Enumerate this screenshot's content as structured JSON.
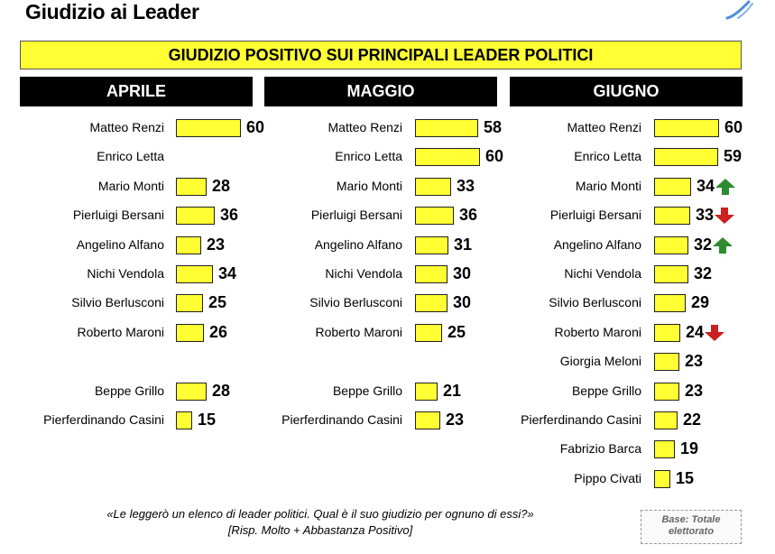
{
  "page": {
    "title": "Giudizio ai Leader"
  },
  "chart_data": {
    "type": "bar",
    "title": "GIUDIZIO POSITIVO SUI PRINCIPALI LEADER POLITICI",
    "panels": [
      {
        "name": "APRILE",
        "rows": [
          {
            "label": "Matteo Renzi",
            "value": 60
          },
          {
            "label": "Enrico Letta",
            "value": null
          },
          {
            "label": "Mario Monti",
            "value": 28
          },
          {
            "label": "Pierluigi Bersani",
            "value": 36
          },
          {
            "label": "Angelino Alfano",
            "value": 23
          },
          {
            "label": "Nichi Vendola",
            "value": 34
          },
          {
            "label": "Silvio Berlusconi",
            "value": 25
          },
          {
            "label": "Roberto Maroni",
            "value": 26
          },
          {
            "label": "",
            "value": null
          },
          {
            "label": "Beppe Grillo",
            "value": 28
          },
          {
            "label": "Pierferdinando Casini",
            "value": 15
          }
        ]
      },
      {
        "name": "MAGGIO",
        "rows": [
          {
            "label": "Matteo Renzi",
            "value": 58
          },
          {
            "label": "Enrico Letta",
            "value": 60
          },
          {
            "label": "Mario Monti",
            "value": 33
          },
          {
            "label": "Pierluigi Bersani",
            "value": 36
          },
          {
            "label": "Angelino Alfano",
            "value": 31
          },
          {
            "label": "Nichi Vendola",
            "value": 30
          },
          {
            "label": "Silvio Berlusconi",
            "value": 30
          },
          {
            "label": "Roberto Maroni",
            "value": 25
          },
          {
            "label": "",
            "value": null
          },
          {
            "label": "Beppe Grillo",
            "value": 21
          },
          {
            "label": "Pierferdinando Casini",
            "value": 23
          }
        ]
      },
      {
        "name": "GIUGNO",
        "rows": [
          {
            "label": "Matteo Renzi",
            "value": 60
          },
          {
            "label": "Enrico Letta",
            "value": 59
          },
          {
            "label": "Mario Monti",
            "value": 34,
            "trend": "up"
          },
          {
            "label": "Pierluigi Bersani",
            "value": 33,
            "trend": "down"
          },
          {
            "label": "Angelino Alfano",
            "value": 32,
            "trend": "up"
          },
          {
            "label": "Nichi Vendola",
            "value": 32
          },
          {
            "label": "Silvio Berlusconi",
            "value": 29
          },
          {
            "label": "Roberto Maroni",
            "value": 24,
            "trend": "down"
          },
          {
            "label": "Giorgia Meloni",
            "value": 23
          },
          {
            "label": "Beppe Grillo",
            "value": 23
          },
          {
            "label": "Pierferdinando Casini",
            "value": 22
          },
          {
            "label": "Fabrizio Barca",
            "value": 19
          },
          {
            "label": "Pippo Civati",
            "value": 15
          }
        ]
      }
    ]
  },
  "footer": {
    "question": "«Le leggerò un elenco di leader politici. Qual è il suo giudizio per ognuno di essi?»",
    "note": "[Risp. Molto + Abbastanza Positivo]",
    "base_line1": "Base: Totale",
    "base_line2": "elettorato"
  },
  "colors": {
    "bar": "#ffff33",
    "up_arrow": "#2e8b2e",
    "down_arrow": "#cc1f1f"
  }
}
